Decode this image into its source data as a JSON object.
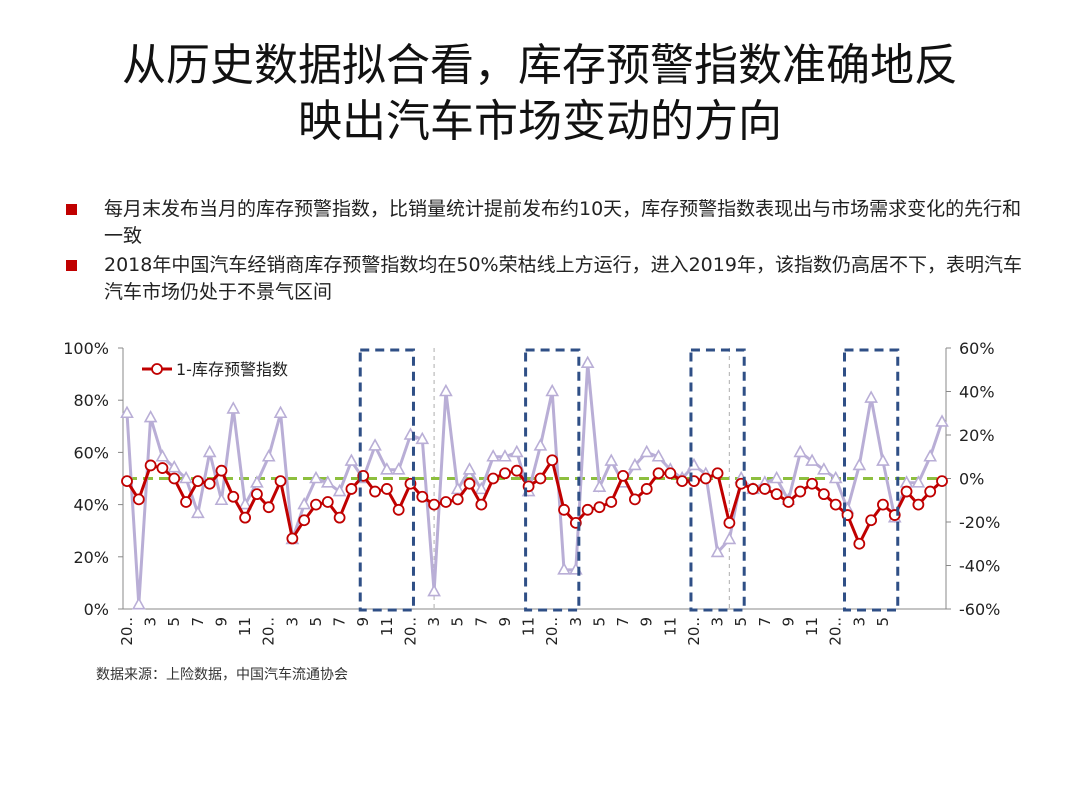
{
  "slide": {
    "title_line1": "从历史数据拟合看，库存预警指数准确地反",
    "title_line2": "映出汽车市场变动的方向",
    "bullets": [
      "每月末发布当月的库存预警指数，比销量统计提前发布约10天，库存预警指数表现出与市场需求变化的先行和一致",
      "2018年中国汽车经销商库存预警指数均在50%荣枯线上方运行，进入2019年，该指数仍高居不下，表明汽车汽车市场仍处于不景气区间"
    ],
    "source": "数据来源：上险数据，中国汽车流通协会"
  },
  "colors": {
    "bullet": "#c00000",
    "series_index": "#c00000",
    "series_secondary": "#b9aed6",
    "threshold": "#8dbf3e",
    "box": "#2f4f86"
  },
  "chart_data": {
    "type": "line",
    "y_left": {
      "ylim": [
        0,
        100
      ],
      "ticks": [
        "0%",
        "20%",
        "40%",
        "60%",
        "80%",
        "100%"
      ]
    },
    "y_right": {
      "ylim": [
        -60,
        60
      ],
      "ticks": [
        "-60%",
        "-40%",
        "-20%",
        "0%",
        "20%",
        "40%",
        "60%"
      ]
    },
    "x_tick_labels": [
      "20..",
      "3",
      "5",
      "7",
      "9",
      "11",
      "20..",
      "3",
      "5",
      "7",
      "9",
      "11",
      "20..",
      "3",
      "5",
      "7",
      "9",
      "11",
      "20..",
      "3",
      "5",
      "7",
      "9",
      "11",
      "20..",
      "3",
      "5",
      "7",
      "9",
      "11",
      "20..",
      "3",
      "5"
    ],
    "series": [
      {
        "name": "1-库存预警指数",
        "axis": "left",
        "values": [
          49,
          42,
          55,
          54,
          50,
          41,
          49,
          48,
          53,
          43,
          35,
          44,
          39,
          49,
          27,
          34,
          40,
          41,
          35,
          46,
          51,
          45,
          46,
          38,
          48,
          43,
          40,
          41,
          42,
          48,
          40,
          50,
          52,
          53,
          47,
          50,
          57,
          38,
          33,
          38,
          39,
          41,
          51,
          42,
          46,
          52,
          52,
          49,
          49,
          50,
          52,
          33,
          48,
          46,
          46,
          44,
          41,
          45,
          48,
          44,
          40,
          36,
          25,
          34,
          40,
          36,
          45,
          40,
          45,
          49
        ]
      },
      {
        "axis": "right",
        "values": [
          30,
          -58,
          28,
          10,
          5,
          0,
          -16,
          12,
          -10,
          32,
          -12,
          -2,
          10,
          30,
          -28,
          -12,
          0,
          -2,
          -6,
          8,
          0,
          15,
          4,
          4,
          20,
          18,
          -52,
          40,
          -5,
          4,
          -5,
          10,
          10,
          12,
          -6,
          15,
          40,
          -42,
          -42,
          53,
          -4,
          8,
          -2,
          6,
          12,
          10,
          4,
          0,
          6,
          2,
          -34,
          -28,
          0,
          -5,
          -2,
          0,
          -10,
          12,
          8,
          4,
          0,
          -14,
          6,
          37,
          8,
          -18,
          -2,
          -2,
          10,
          26
        ]
      }
    ],
    "threshold_line": 50,
    "boxes_x_index": [
      [
        20,
        24
      ],
      [
        34,
        38
      ],
      [
        48,
        52
      ],
      [
        61,
        65
      ]
    ],
    "dashed_vlines_x_index": [
      26,
      51
    ],
    "legend": {
      "position": "top-left",
      "label": "1-库存预警指数"
    },
    "grid": false
  }
}
